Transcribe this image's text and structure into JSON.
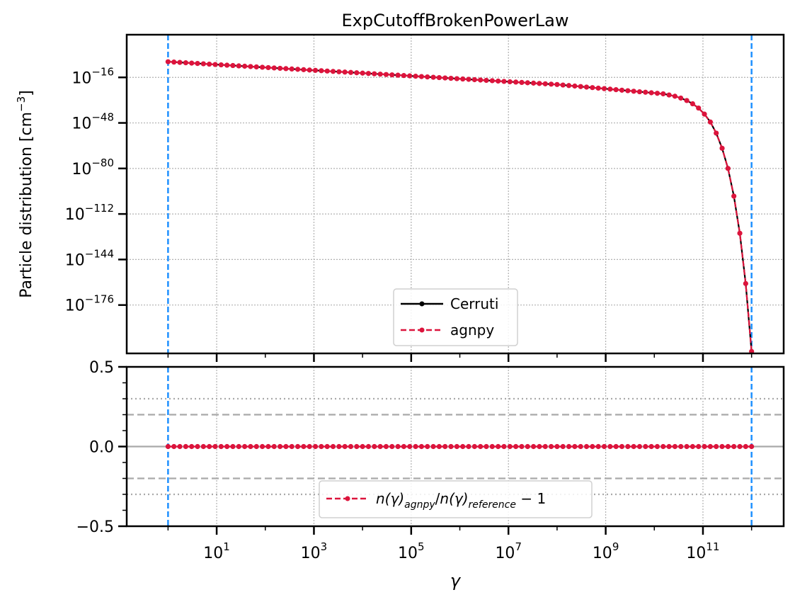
{
  "colors": {
    "cerruti": "#000000",
    "agnpy": "#dc143c",
    "limits": "#1e90ff",
    "grid": "#b0b0b0",
    "ref_lines": "#a9a9a9"
  },
  "chart_data": [
    {
      "type": "line",
      "title": "ExpCutoffBrokenPowerLaw",
      "ylabel": "Particle distribution [cm",
      "ylabel_unit_sup": "−3",
      "ylabel_close": "]",
      "xscale": "log",
      "yscale": "log",
      "xlim_log10": [
        -0.85,
        12.66
      ],
      "ylim_log10": [
        -210,
        14
      ],
      "xticks": [
        {
          "base": "10",
          "exp": "1",
          "value": 10
        },
        {
          "base": "10",
          "exp": "3",
          "value": 1000
        },
        {
          "base": "10",
          "exp": "5",
          "value": 100000
        },
        {
          "base": "10",
          "exp": "7",
          "value": 10000000
        },
        {
          "base": "10",
          "exp": "9",
          "value": 1000000000
        },
        {
          "base": "10",
          "exp": "11",
          "value": 100000000000
        }
      ],
      "yticks": [
        {
          "base": "10",
          "exp": "−16",
          "log": -16
        },
        {
          "base": "10",
          "exp": "−48",
          "log": -48
        },
        {
          "base": "10",
          "exp": "−80",
          "log": -80
        },
        {
          "base": "10",
          "exp": "−112",
          "log": -112
        },
        {
          "base": "10",
          "exp": "−144",
          "log": -144
        },
        {
          "base": "10",
          "exp": "−176",
          "log": -176
        }
      ],
      "grid": true,
      "legend_position": "lower-center",
      "vertical_lines_gamma": [
        1.0,
        1000000000000.0
      ],
      "series": [
        {
          "name": "Cerruti",
          "style": "solid line with points",
          "log10_gamma": [
            0.0,
            0.121,
            0.242,
            0.364,
            0.485,
            0.606,
            0.727,
            0.848,
            0.97,
            1.091,
            1.212,
            1.333,
            1.455,
            1.576,
            1.697,
            1.818,
            1.939,
            2.061,
            2.182,
            2.303,
            2.424,
            2.545,
            2.667,
            2.788,
            2.909,
            3.03,
            3.152,
            3.273,
            3.394,
            3.515,
            3.636,
            3.758,
            3.879,
            4.0,
            4.121,
            4.242,
            4.364,
            4.485,
            4.606,
            4.727,
            4.848,
            4.97,
            5.091,
            5.212,
            5.333,
            5.455,
            5.576,
            5.697,
            5.818,
            5.939,
            6.061,
            6.182,
            6.303,
            6.424,
            6.545,
            6.667,
            6.788,
            6.909,
            7.03,
            7.152,
            7.273,
            7.394,
            7.515,
            7.636,
            7.758,
            7.879,
            8.0,
            8.121,
            8.242,
            8.364,
            8.485,
            8.606,
            8.727,
            8.848,
            8.97,
            9.091,
            9.212,
            9.333,
            9.455,
            9.576,
            9.697,
            9.818,
            9.939,
            10.061,
            10.182,
            10.303,
            10.424,
            10.545,
            10.667,
            10.788,
            10.909,
            11.03,
            11.152,
            11.273,
            11.394,
            11.515,
            11.636,
            11.758,
            11.879,
            12.0
          ],
          "log10_n": [
            -5.0,
            -5.24,
            -5.48,
            -5.73,
            -5.97,
            -6.21,
            -6.45,
            -6.7,
            -6.94,
            -7.18,
            -7.42,
            -7.67,
            -7.91,
            -8.15,
            -8.39,
            -8.64,
            -8.88,
            -9.12,
            -9.36,
            -9.61,
            -9.85,
            -10.09,
            -10.33,
            -10.58,
            -10.82,
            -11.06,
            -11.3,
            -11.55,
            -11.79,
            -12.03,
            -12.27,
            -12.52,
            -12.76,
            -13.0,
            -13.24,
            -13.48,
            -13.73,
            -13.97,
            -14.21,
            -14.45,
            -14.7,
            -14.94,
            -15.18,
            -15.42,
            -15.67,
            -15.91,
            -16.15,
            -16.39,
            -16.64,
            -16.88,
            -17.12,
            -17.36,
            -17.61,
            -17.85,
            -18.09,
            -18.33,
            -18.58,
            -18.82,
            -19.06,
            -19.3,
            -19.55,
            -19.79,
            -20.03,
            -20.27,
            -20.52,
            -20.76,
            -21.0,
            -21.36,
            -21.73,
            -22.09,
            -22.45,
            -22.82,
            -23.18,
            -23.55,
            -23.91,
            -24.27,
            -24.64,
            -25.0,
            -25.36,
            -25.73,
            -26.09,
            -26.45,
            -26.82,
            -27.18,
            -27.55,
            -28.36,
            -29.24,
            -30.55,
            -32.27,
            -34.55,
            -37.55,
            -41.82,
            -47.36,
            -55.18,
            -65.82,
            -80.0,
            -99.45,
            -125.55,
            -160.91,
            -208.64
          ]
        },
        {
          "name": "agnpy",
          "style": "dashed line with points",
          "log10_gamma": [
            0.0,
            0.121,
            0.242,
            0.364,
            0.485,
            0.606,
            0.727,
            0.848,
            0.97,
            1.091,
            1.212,
            1.333,
            1.455,
            1.576,
            1.697,
            1.818,
            1.939,
            2.061,
            2.182,
            2.303,
            2.424,
            2.545,
            2.667,
            2.788,
            2.909,
            3.03,
            3.152,
            3.273,
            3.394,
            3.515,
            3.636,
            3.758,
            3.879,
            4.0,
            4.121,
            4.242,
            4.364,
            4.485,
            4.606,
            4.727,
            4.848,
            4.97,
            5.091,
            5.212,
            5.333,
            5.455,
            5.576,
            5.697,
            5.818,
            5.939,
            6.061,
            6.182,
            6.303,
            6.424,
            6.545,
            6.667,
            6.788,
            6.909,
            7.03,
            7.152,
            7.273,
            7.394,
            7.515,
            7.636,
            7.758,
            7.879,
            8.0,
            8.121,
            8.242,
            8.364,
            8.485,
            8.606,
            8.727,
            8.848,
            8.97,
            9.091,
            9.212,
            9.333,
            9.455,
            9.576,
            9.697,
            9.818,
            9.939,
            10.061,
            10.182,
            10.303,
            10.424,
            10.545,
            10.667,
            10.788,
            10.909,
            11.03,
            11.152,
            11.273,
            11.394,
            11.515,
            11.636,
            11.758,
            11.879,
            12.0
          ],
          "log10_n": [
            -5.0,
            -5.24,
            -5.48,
            -5.73,
            -5.97,
            -6.21,
            -6.45,
            -6.7,
            -6.94,
            -7.18,
            -7.42,
            -7.67,
            -7.91,
            -8.15,
            -8.39,
            -8.64,
            -8.88,
            -9.12,
            -9.36,
            -9.61,
            -9.85,
            -10.09,
            -10.33,
            -10.58,
            -10.82,
            -11.06,
            -11.3,
            -11.55,
            -11.79,
            -12.03,
            -12.27,
            -12.52,
            -12.76,
            -13.0,
            -13.24,
            -13.48,
            -13.73,
            -13.97,
            -14.21,
            -14.45,
            -14.7,
            -14.94,
            -15.18,
            -15.42,
            -15.67,
            -15.91,
            -16.15,
            -16.39,
            -16.64,
            -16.88,
            -17.12,
            -17.36,
            -17.61,
            -17.85,
            -18.09,
            -18.33,
            -18.58,
            -18.82,
            -19.06,
            -19.3,
            -19.55,
            -19.79,
            -20.03,
            -20.27,
            -20.52,
            -20.76,
            -21.0,
            -21.36,
            -21.73,
            -22.09,
            -22.45,
            -22.82,
            -23.18,
            -23.55,
            -23.91,
            -24.27,
            -24.64,
            -25.0,
            -25.36,
            -25.73,
            -26.09,
            -26.45,
            -26.82,
            -27.18,
            -27.55,
            -28.36,
            -29.24,
            -30.55,
            -32.27,
            -34.55,
            -37.55,
            -41.82,
            -47.36,
            -55.18,
            -65.82,
            -80.0,
            -99.45,
            -125.55,
            -160.91,
            -208.64
          ]
        }
      ]
    },
    {
      "type": "line",
      "xlabel": "γ",
      "xscale": "log",
      "xlim_log10": [
        -0.85,
        12.66
      ],
      "ylim": [
        -0.5,
        0.5
      ],
      "yticks": [
        "0.5",
        "0.0",
        "−0.5"
      ],
      "ytick_values": [
        0.5,
        0.0,
        -0.5
      ],
      "y_minor_tick_step": 0.1,
      "grid": true,
      "legend_position": "lower-center",
      "reference_lines": [
        {
          "y": 0.0,
          "style": "solid"
        },
        {
          "y": 0.2,
          "style": "dashed"
        },
        {
          "y": -0.2,
          "style": "dashed"
        },
        {
          "y": 0.3,
          "style": "dotted"
        },
        {
          "y": -0.3,
          "style": "dotted"
        }
      ],
      "vertical_lines_gamma": [
        1.0,
        1000000000000.0
      ],
      "series": [
        {
          "name": "n(γ)_agnpy/n(γ)_reference − 1",
          "legend_parts": {
            "a": "n(γ)",
            "a_sub": "agnpy",
            "slash": "/",
            "b": "n(γ)",
            "b_sub": "reference",
            "tail": " − 1"
          },
          "style": "dashed line with points",
          "n_points": 100,
          "log10_gamma_range": [
            0,
            12
          ],
          "value": 0.0
        }
      ]
    }
  ]
}
